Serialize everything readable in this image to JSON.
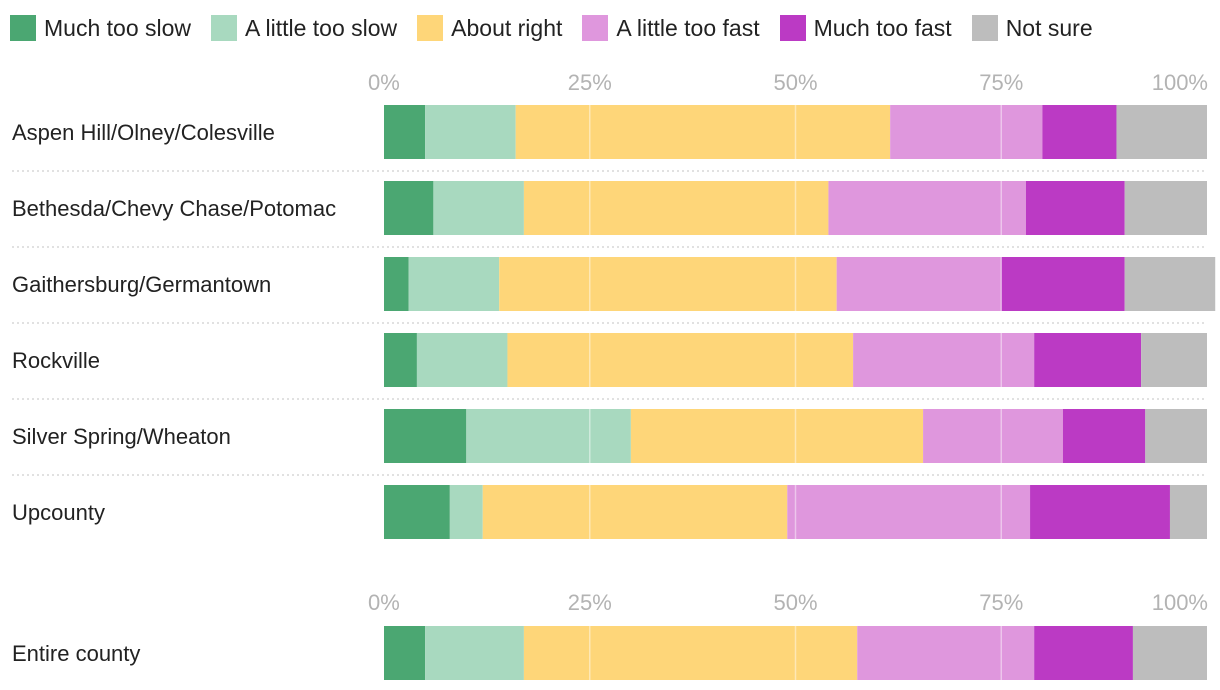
{
  "chart_data": {
    "type": "stacked-bar-horizontal-100",
    "title": "",
    "xlabel": "",
    "ylabel": "",
    "xlim": [
      0,
      100
    ],
    "ticks": [
      "0%",
      "25%",
      "50%",
      "75%",
      "100%"
    ],
    "tick_values": [
      0,
      25,
      50,
      75,
      100
    ],
    "legend_position": "top",
    "series": [
      {
        "name": "Much too slow",
        "color": "#4ba772"
      },
      {
        "name": "A little too slow",
        "color": "#a8d9bf"
      },
      {
        "name": "About right",
        "color": "#fed679"
      },
      {
        "name": "A little too fast",
        "color": "#df97dd"
      },
      {
        "name": "Much too fast",
        "color": "#bb3ac4"
      },
      {
        "name": "Not sure",
        "color": "#bdbdbd"
      }
    ],
    "categories": [
      "Aspen Hill/Olney/Colesville",
      "Bethesda/Chevy Chase/Potomac",
      "Gaithersburg/Germantown",
      "Rockville",
      "Silver Spring/Wheaton",
      "Upcounty"
    ],
    "values": [
      [
        5,
        11,
        45.5,
        18.5,
        9,
        11
      ],
      [
        6,
        11,
        37,
        24,
        12,
        10
      ],
      [
        3,
        11,
        41,
        20,
        15,
        11
      ],
      [
        4,
        11,
        42,
        22,
        13,
        8
      ],
      [
        10,
        20,
        35.5,
        17,
        10,
        7.5
      ],
      [
        8,
        4,
        37,
        29.5,
        17,
        4.5
      ]
    ],
    "total": {
      "category": "Entire county",
      "values": [
        5,
        12,
        40.5,
        21.5,
        12,
        9
      ]
    }
  }
}
